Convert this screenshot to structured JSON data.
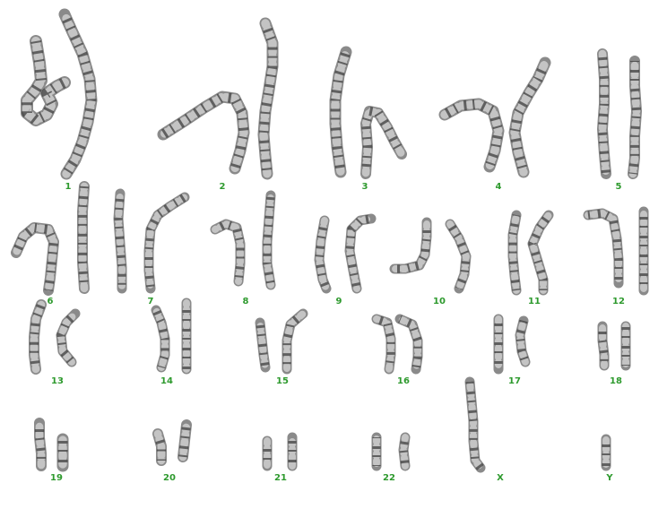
{
  "colors": {
    "background": "#ffffff",
    "label": "#2e9a2e",
    "chromatid": "#8a8a8a",
    "band_dark": "#3f3f3f",
    "band_light": "#c4c4c4"
  },
  "karyotype": {
    "pairs": [
      {
        "id": "1",
        "label": "1"
      },
      {
        "id": "2",
        "label": "2"
      },
      {
        "id": "3",
        "label": "3"
      },
      {
        "id": "4",
        "label": "4"
      },
      {
        "id": "5",
        "label": "5"
      },
      {
        "id": "6",
        "label": "6"
      },
      {
        "id": "7",
        "label": "7"
      },
      {
        "id": "8",
        "label": "8"
      },
      {
        "id": "9",
        "label": "9"
      },
      {
        "id": "10",
        "label": "10"
      },
      {
        "id": "11",
        "label": "11"
      },
      {
        "id": "12",
        "label": "12"
      },
      {
        "id": "13",
        "label": "13"
      },
      {
        "id": "14",
        "label": "14"
      },
      {
        "id": "15",
        "label": "15"
      },
      {
        "id": "16",
        "label": "16"
      },
      {
        "id": "17",
        "label": "17"
      },
      {
        "id": "18",
        "label": "18"
      },
      {
        "id": "19",
        "label": "19"
      },
      {
        "id": "20",
        "label": "20"
      },
      {
        "id": "21",
        "label": "21"
      },
      {
        "id": "22",
        "label": "22"
      },
      {
        "id": "X",
        "label": "X"
      },
      {
        "id": "Y",
        "label": "Y"
      }
    ]
  }
}
